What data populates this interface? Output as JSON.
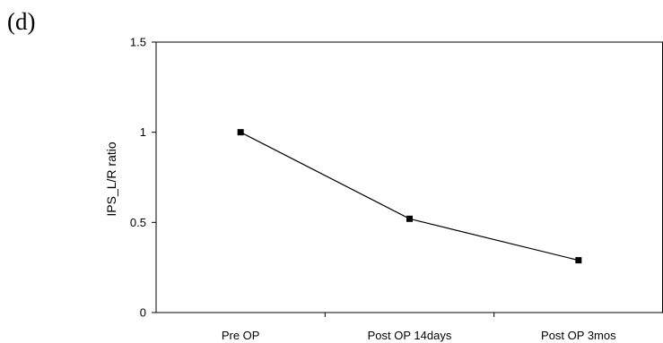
{
  "panel_label": "(d)",
  "chart_data": {
    "type": "line",
    "title": "",
    "xlabel": "",
    "ylabel": "IPS_L/R ratio",
    "categories": [
      "Pre OP",
      "Post OP 14days",
      "Post OP 3mos"
    ],
    "series": [
      {
        "values": [
          1.0,
          0.52,
          0.29
        ],
        "color": "#000000",
        "marker": "square"
      }
    ],
    "ylim": [
      0,
      1.5
    ],
    "yticks": [
      0,
      0.5,
      1,
      1.5
    ],
    "ytick_labels": [
      "0",
      "0.5",
      "1",
      "1.5"
    ],
    "grid": false,
    "legend": "none"
  }
}
